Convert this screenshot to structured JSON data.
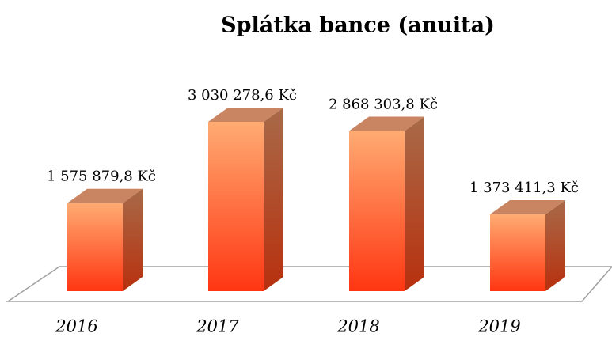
{
  "chart_data": {
    "type": "bar3d",
    "title": "Splátka bance (anuita)",
    "categories": [
      "2016",
      "2017",
      "2018",
      "2019"
    ],
    "values": [
      1575879.8,
      3030278.6,
      2868303.8,
      1373411.3
    ],
    "value_labels": [
      "1 575 879,8 Kč",
      "3 030 278,6 Kč",
      "2 868 303,8 Kč",
      "1 373 411,3 Kč"
    ],
    "color": "#ff5a20"
  }
}
